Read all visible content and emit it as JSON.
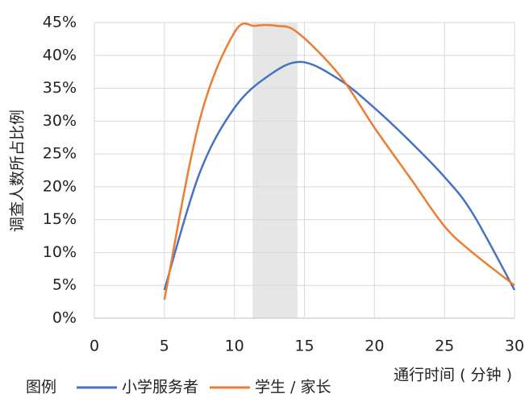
{
  "chart_data": {
    "type": "line",
    "y_label": "调查人数所占比例",
    "x_label": "通行时间 ( 分钟 )",
    "legend_title": "图例",
    "legend": "bottom",
    "grid": true,
    "highlight": [
      11.3,
      14.5
    ],
    "highlight_color": "#e6e6e6",
    "xlim": [
      0,
      30
    ],
    "xticks": [
      0,
      5,
      10,
      15,
      20,
      25,
      30
    ],
    "ylim": [
      0,
      45
    ],
    "yticks": [
      {
        "value": 0,
        "label": "0%"
      },
      {
        "value": 5,
        "label": "5%"
      },
      {
        "value": 10,
        "label": "10%"
      },
      {
        "value": 15,
        "label": "15%"
      },
      {
        "value": 20,
        "label": "20%"
      },
      {
        "value": 25,
        "label": "25%"
      },
      {
        "value": 30,
        "label": "30%"
      },
      {
        "value": 35,
        "label": "35%"
      },
      {
        "value": 40,
        "label": "40%"
      },
      {
        "value": 45,
        "label": "45%"
      }
    ],
    "series": [
      {
        "name": "小学服务者",
        "color": "#4472c4",
        "x": [
          5,
          7.5,
          10,
          12.5,
          14.8,
          17.5,
          20,
          22.5,
          25,
          27,
          30
        ],
        "values": [
          4.3,
          22,
          32,
          37,
          39,
          36.3,
          32,
          27,
          21.5,
          16,
          4.3
        ]
      },
      {
        "name": "学生 / 家长",
        "color": "#ed7d31",
        "x": [
          5,
          7.5,
          10,
          11.5,
          13,
          14.5,
          17.5,
          20,
          22.5,
          25,
          27,
          30
        ],
        "values": [
          2.8,
          30,
          43.5,
          44.5,
          44.5,
          43.5,
          37,
          29,
          21.5,
          14,
          10,
          5
        ]
      }
    ]
  }
}
